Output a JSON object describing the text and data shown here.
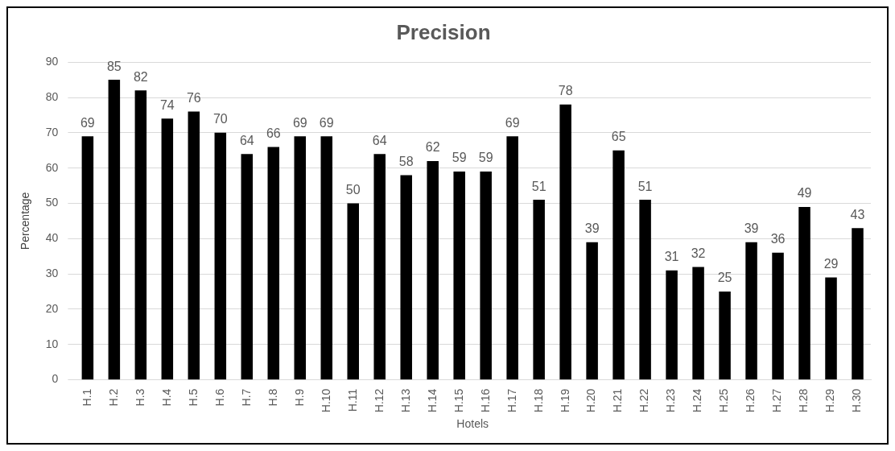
{
  "chart_data": {
    "type": "bar",
    "title": "Precision",
    "xlabel": "Hotels",
    "ylabel": "Percentage",
    "categories": [
      "H.1",
      "H.2",
      "H.3",
      "H.4",
      "H.5",
      "H.6",
      "H.7",
      "H.8",
      "H.9",
      "H.10",
      "H.11",
      "H.12",
      "H.13",
      "H.14",
      "H.15",
      "H.16",
      "H.17",
      "H.18",
      "H.19",
      "H.20",
      "H.21",
      "H.22",
      "H.23",
      "H.24",
      "H.25",
      "H.26",
      "H.27",
      "H.28",
      "H.29",
      "H.30"
    ],
    "values": [
      69,
      85,
      82,
      74,
      76,
      70,
      64,
      66,
      69,
      69,
      50,
      64,
      58,
      62,
      59,
      59,
      69,
      51,
      78,
      39,
      65,
      51,
      31,
      32,
      25,
      39,
      36,
      49,
      29,
      43
    ],
    "color": "#000000",
    "ylim": [
      0,
      90
    ],
    "yticks": [
      0,
      10,
      20,
      30,
      40,
      50,
      60,
      70,
      80,
      90
    ],
    "grid": "y",
    "data_labels": true
  }
}
